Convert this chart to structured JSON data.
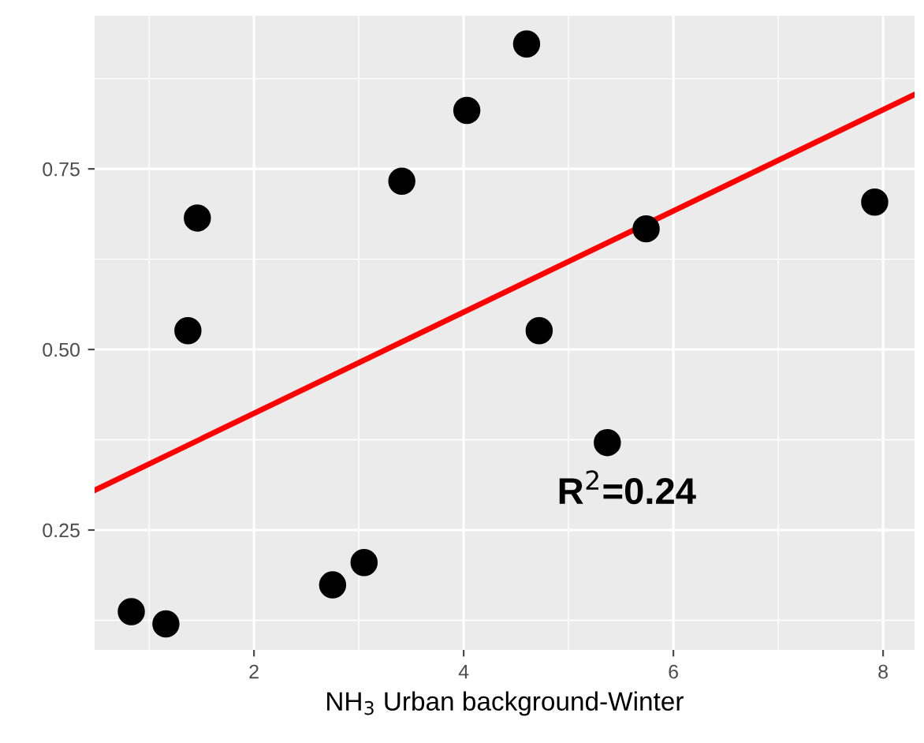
{
  "chart_data": {
    "type": "scatter",
    "xlabel": "NH$_{3}$ Urban background-Winter",
    "series": [
      {
        "color": "#000000",
        "marker": "circle",
        "x": [
          0.83,
          1.16,
          1.37,
          1.46,
          2.75,
          3.05,
          3.41,
          4.03,
          4.6,
          4.72,
          5.37,
          5.74,
          7.92
        ],
        "values": [
          0.137,
          0.12,
          0.526,
          0.682,
          0.174,
          0.205,
          0.733,
          0.831,
          0.923,
          0.526,
          0.371,
          0.667,
          0.704
        ]
      },
      {
        "type": "line",
        "color": "#ff0000",
        "x": [
          0.48,
          8.3
        ],
        "values": [
          0.305,
          0.853
        ]
      }
    ],
    "annotations": [
      "R$^{2}$=0.24"
    ],
    "xlim": [
      0.48,
      8.3
    ],
    "ylim": [
      0.084,
      0.962
    ],
    "xticks": [
      2,
      4,
      6,
      8
    ],
    "yticks": [
      0.25,
      {
        "value": 0.5,
        "label": "0.50"
      },
      0.75
    ],
    "grid": true
  }
}
